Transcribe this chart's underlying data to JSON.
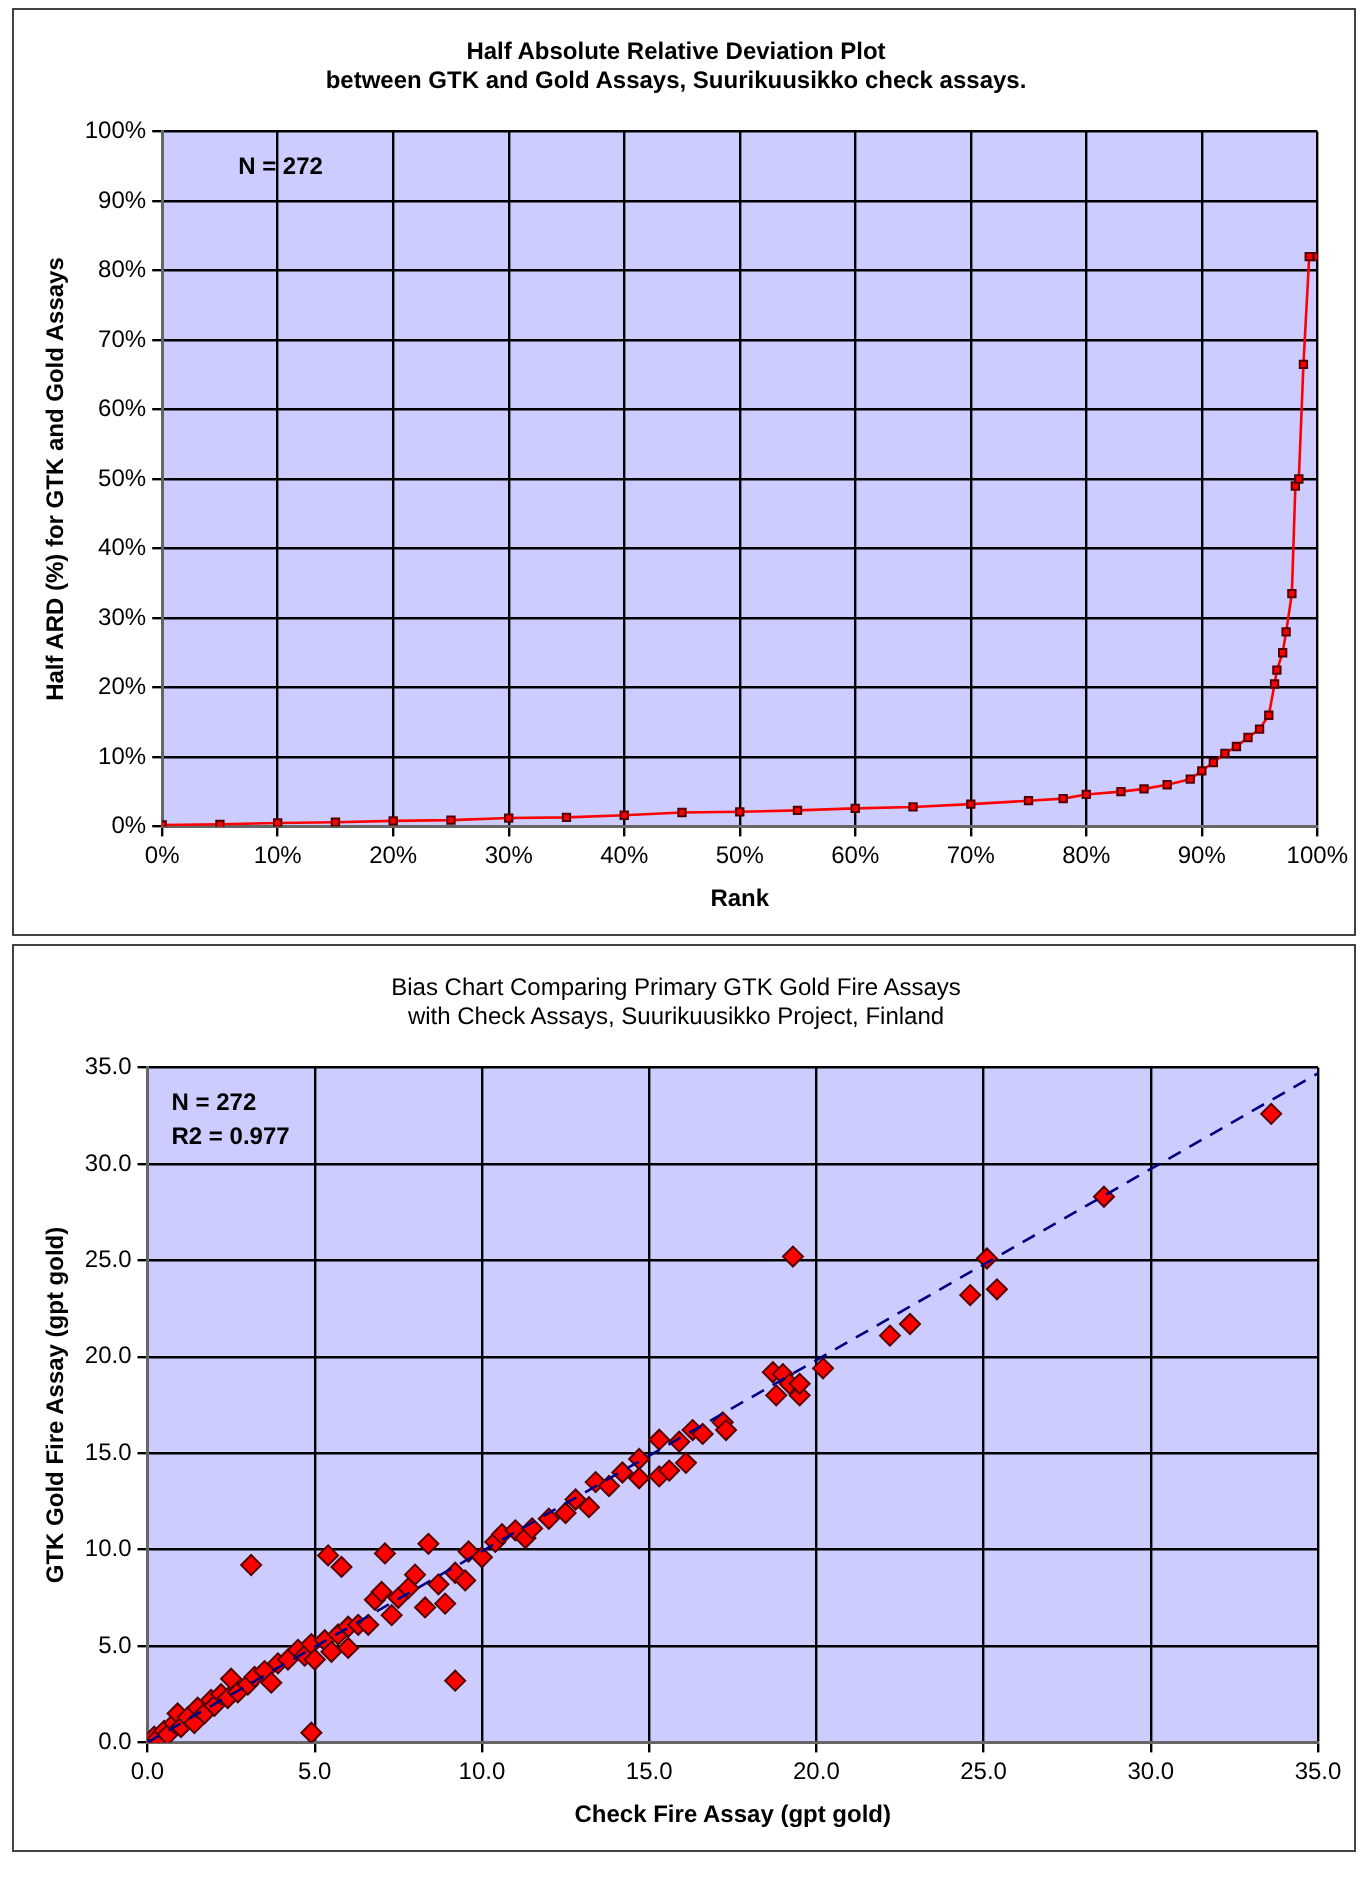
{
  "chart_data": [
    {
      "type": "line",
      "title": "Half Absolute Relative Deviation Plot\nbetween GTK and Gold Assays, Suurikuusikko check assays.",
      "xlabel": "Rank",
      "ylabel": "Half ARD (%) for GTK and Gold Assays",
      "color": "#ff0000",
      "marker": "square",
      "grid": true,
      "annotations": [
        "N = 272"
      ],
      "x": [
        0,
        5,
        10,
        15,
        20,
        25,
        30,
        35,
        40,
        45,
        50,
        55,
        60,
        65,
        70,
        75,
        78,
        80,
        83,
        85,
        87,
        89,
        90,
        91,
        92,
        93,
        94,
        95,
        95.8,
        96.3,
        96.5,
        97,
        97.3,
        97.8,
        98.1,
        98.4,
        98.8,
        99.3,
        100
      ],
      "values": [
        0.2,
        0.3,
        0.5,
        0.6,
        0.8,
        0.9,
        1.2,
        1.3,
        1.6,
        2.0,
        2.1,
        2.3,
        2.6,
        2.8,
        3.2,
        3.7,
        4.0,
        4.6,
        5.0,
        5.4,
        6.0,
        6.8,
        8.0,
        9.2,
        10.5,
        11.5,
        12.8,
        14.0,
        16,
        20.5,
        22.5,
        25,
        28,
        33.5,
        49,
        50,
        66.5,
        82,
        82
      ],
      "xlim": [
        0,
        100
      ],
      "xticks": [
        {
          "value": 0,
          "label": "0%"
        },
        {
          "value": 10,
          "label": "10%"
        },
        {
          "value": 20,
          "label": "20%"
        },
        {
          "value": 30,
          "label": "30%"
        },
        {
          "value": 40,
          "label": "40%"
        },
        {
          "value": 50,
          "label": "50%"
        },
        {
          "value": 60,
          "label": "60%"
        },
        {
          "value": 70,
          "label": "70%"
        },
        {
          "value": 80,
          "label": "80%"
        },
        {
          "value": 90,
          "label": "90%"
        },
        {
          "value": 100,
          "label": "100%"
        }
      ],
      "ylim": [
        0,
        100
      ],
      "yticks": [
        {
          "value": 0,
          "label": "0%"
        },
        {
          "value": 10,
          "label": "10%"
        },
        {
          "value": 20,
          "label": "20%"
        },
        {
          "value": 30,
          "label": "30%"
        },
        {
          "value": 40,
          "label": "40%"
        },
        {
          "value": 50,
          "label": "50%"
        },
        {
          "value": 60,
          "label": "60%"
        },
        {
          "value": 70,
          "label": "70%"
        },
        {
          "value": 80,
          "label": "80%"
        },
        {
          "value": 90,
          "label": "90%"
        },
        {
          "value": 100,
          "label": "100%"
        }
      ]
    },
    {
      "type": "scatter",
      "title": "Bias Chart Comparing Primary GTK Gold Fire Assays\nwith Check Assays, Suurikuusikko Project, Finland",
      "xlabel": "Check Fire Assay (gpt gold)",
      "ylabel": "GTK Gold Fire Assay (gpt gold)",
      "grid": true,
      "annotations": [
        "N = 272",
        "R2 = 0.977"
      ],
      "series": [
        {
          "type": "scatter",
          "color": "#ff0000",
          "marker": "diamond",
          "x": [
            0.1,
            0.2,
            0.3,
            0.5,
            0.6,
            0.8,
            0.9,
            1.0,
            1.2,
            1.4,
            1.5,
            1.7,
            1.9,
            2.0,
            2.2,
            2.4,
            2.5,
            2.7,
            3.0,
            3.2,
            3.5,
            3.7,
            3.9,
            4.2,
            4.5,
            4.7,
            4.9,
            5.0,
            5.3,
            5.5,
            5.7,
            6.0,
            6.0,
            6.3,
            6.6,
            6.8,
            7.0,
            7.3,
            7.5,
            7.8,
            8.0,
            8.3,
            8.7,
            8.9,
            9.2,
            9.5,
            9.6,
            10.0,
            10.4,
            10.6,
            11.0,
            11.3,
            11.5,
            12.0,
            12.5,
            12.8,
            13.2,
            13.4,
            13.8,
            14.2,
            14.7,
            14.7,
            15.3,
            15.3,
            15.6,
            15.9,
            16.1,
            16.3,
            16.6,
            17.2,
            17.3,
            18.7,
            18.8,
            19.0,
            19.3,
            19.2,
            19.5,
            19.5,
            20.2,
            22.2,
            22.8,
            24.6,
            25.1,
            25.4,
            28.6,
            33.6,
            3.1,
            5.4,
            5.8,
            7.1,
            8.4,
            9.2,
            4.9
          ],
          "values": [
            0.1,
            0.3,
            0.2,
            0.6,
            0.4,
            1.0,
            1.5,
            0.8,
            1.3,
            1.0,
            1.8,
            1.5,
            2.2,
            1.9,
            2.5,
            2.3,
            3.3,
            2.6,
            3.0,
            3.4,
            3.7,
            3.1,
            4.1,
            4.3,
            4.8,
            4.5,
            5.1,
            4.3,
            5.3,
            4.7,
            5.6,
            4.9,
            6.0,
            6.1,
            6.1,
            7.4,
            7.8,
            6.6,
            7.5,
            8.0,
            8.7,
            7.0,
            8.2,
            7.2,
            8.8,
            8.4,
            9.9,
            9.6,
            10.4,
            10.8,
            11.0,
            10.6,
            11.1,
            11.6,
            11.9,
            12.6,
            12.2,
            13.5,
            13.3,
            14.0,
            13.7,
            14.7,
            13.8,
            15.7,
            14.1,
            15.6,
            14.5,
            16.2,
            16.0,
            16.6,
            16.2,
            19.2,
            18.0,
            19.1,
            25.2,
            18.6,
            18.0,
            18.6,
            19.4,
            21.1,
            21.7,
            23.2,
            25.1,
            23.5,
            28.3,
            32.6,
            9.2,
            9.7,
            9.1,
            9.8,
            10.3,
            3.2,
            0.5
          ]
        },
        {
          "type": "line",
          "color": "#000080",
          "line_style": "dashed",
          "marker": "none",
          "x": [
            0,
            35
          ],
          "values": [
            0,
            34.7
          ]
        }
      ],
      "xlim": [
        0,
        35
      ],
      "xticks": [
        {
          "value": 0,
          "label": "0.0"
        },
        {
          "value": 5,
          "label": "5.0"
        },
        {
          "value": 10,
          "label": "10.0"
        },
        {
          "value": 15,
          "label": "15.0"
        },
        {
          "value": 20,
          "label": "20.0"
        },
        {
          "value": 25,
          "label": "25.0"
        },
        {
          "value": 30,
          "label": "30.0"
        },
        {
          "value": 35,
          "label": "35.0"
        }
      ],
      "ylim": [
        0,
        35
      ],
      "yticks": [
        {
          "value": 0,
          "label": "0.0"
        },
        {
          "value": 5,
          "label": "5.0"
        },
        {
          "value": 10,
          "label": "10.0"
        },
        {
          "value": 15,
          "label": "15.0"
        },
        {
          "value": 20,
          "label": "20.0"
        },
        {
          "value": 25,
          "label": "25.0"
        },
        {
          "value": 30,
          "label": "30.0"
        },
        {
          "value": 35,
          "label": "35.0"
        }
      ]
    }
  ]
}
